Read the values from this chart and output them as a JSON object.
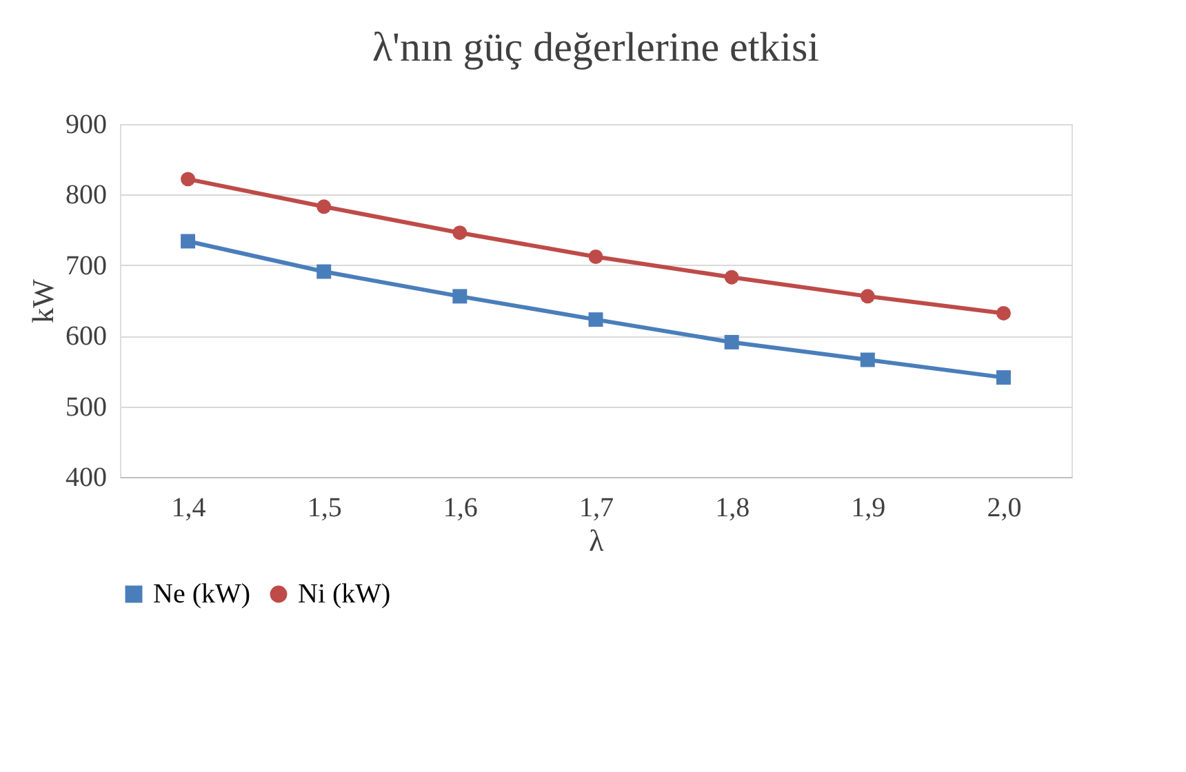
{
  "chart_data": {
    "type": "line",
    "title": "λ'nın güç değerlerine etkisi",
    "xlabel": "λ",
    "ylabel": "kW",
    "categories": [
      "1,4",
      "1,5",
      "1,6",
      "1,7",
      "1,8",
      "1,9",
      "2,0"
    ],
    "series": [
      {
        "name": "Ne (kW)",
        "color": "#4a7ebb",
        "marker": "square",
        "values": [
          734,
          691,
          656,
          623,
          591,
          566,
          541
        ]
      },
      {
        "name": "Ni (kW)",
        "color": "#be4b48",
        "marker": "circle",
        "values": [
          822,
          783,
          746,
          712,
          683,
          656,
          632
        ]
      }
    ],
    "ylim": [
      400,
      900
    ],
    "yticks": [
      400,
      500,
      600,
      700,
      800,
      900
    ],
    "grid": "y",
    "legend": "bottom",
    "line_style": "solid"
  }
}
